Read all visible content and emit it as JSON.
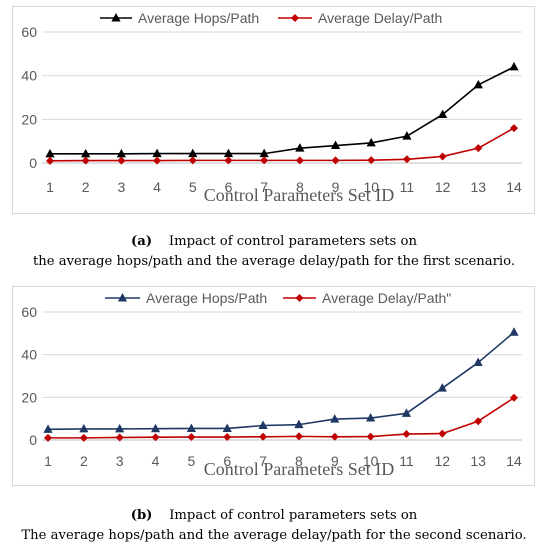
{
  "chart_data": [
    {
      "type": "line",
      "categories": [
        "1",
        "2",
        "3",
        "4",
        "5",
        "6",
        "7",
        "8",
        "9",
        "10",
        "11",
        "12",
        "13",
        "14"
      ],
      "series": [
        {
          "name": "Average Hops/Path",
          "color": "#000000",
          "marker": "triangle",
          "values": [
            4.2,
            4.2,
            4.2,
            4.3,
            4.3,
            4.3,
            4.3,
            6.8,
            8.0,
            9.2,
            12.3,
            22.2,
            35.8,
            44.0
          ]
        },
        {
          "name": "Average Delay/Path",
          "color": "#c00000",
          "marker": "diamond",
          "values": [
            1.0,
            1.1,
            1.1,
            1.1,
            1.2,
            1.2,
            1.2,
            1.2,
            1.2,
            1.3,
            1.7,
            3.0,
            6.8,
            16.0
          ]
        }
      ],
      "xlabel": "Control Parameters Set ID",
      "ylabel": "",
      "ylim": [
        0,
        60
      ],
      "yticks": [
        "0",
        "20",
        "40",
        "60"
      ],
      "grid": "horizontal",
      "legend_position": "top"
    },
    {
      "type": "line",
      "categories": [
        "1",
        "2",
        "3",
        "4",
        "5",
        "6",
        "7",
        "8",
        "9",
        "10",
        "11",
        "12",
        "13",
        "14"
      ],
      "series": [
        {
          "name": "Average Hops/Path",
          "color": "#1f3864",
          "marker": "triangle",
          "values": [
            5.0,
            5.2,
            5.2,
            5.3,
            5.4,
            5.4,
            6.8,
            7.2,
            9.8,
            10.3,
            12.5,
            24.3,
            36.3,
            50.5
          ]
        },
        {
          "name": "Average Delay/Path\"",
          "color": "#c00000",
          "marker": "diamond",
          "values": [
            1.0,
            1.0,
            1.2,
            1.3,
            1.4,
            1.4,
            1.5,
            1.7,
            1.5,
            1.6,
            2.8,
            3.0,
            8.8,
            19.8
          ]
        }
      ],
      "xlabel": "Control Parameters Set ID",
      "ylabel": "",
      "ylim": [
        0,
        60
      ],
      "yticks": [
        "0",
        "20",
        "40",
        "60"
      ],
      "grid": "horizontal",
      "legend_position": "top"
    }
  ],
  "captions": [
    {
      "label": "(a)",
      "line1": "Impact of control parameters sets on",
      "line2": "the average hops/path and the average delay/path for the first scenario."
    },
    {
      "label": "(b)",
      "line1": "Impact of control parameters sets on",
      "line2": "The average hops/path and the average delay/path for the second scenario."
    }
  ]
}
